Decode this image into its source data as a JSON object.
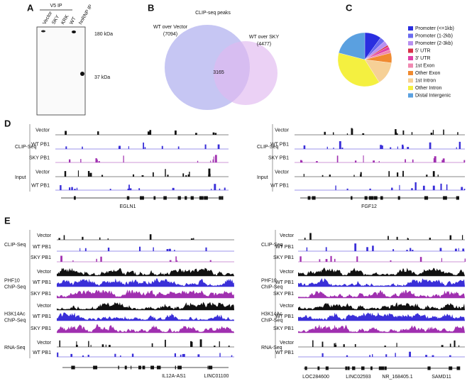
{
  "panel_a": {
    "label": "A",
    "header": "V5 IP",
    "lanes": [
      "Vector",
      "SKY",
      "KRK",
      "WT",
      "hnRNP IP"
    ],
    "markers": [
      "180 kDa",
      "37 kDa"
    ]
  },
  "panel_b": {
    "label": "B",
    "title": "CLIP-seq peaks",
    "sets": [
      {
        "name": "WT over Vector",
        "count": "(7094)"
      },
      {
        "name": "WT over SKY",
        "count": "(4477)"
      }
    ],
    "overlap": "3165"
  },
  "panel_c": {
    "label": "C",
    "chart_data": {
      "type": "pie",
      "categories": [
        "Promoter (<=1kb)",
        "Promoter (1-2kb)",
        "Promoter (2-3kb)",
        "5' UTR",
        "3' UTR",
        "1st Exon",
        "Other Exon",
        "1st Intron",
        "Other Intron",
        "Distal Intergenic"
      ],
      "values": [
        10,
        3,
        3,
        1,
        2,
        2,
        6,
        14,
        38,
        21
      ],
      "colors": [
        "#2a2ee0",
        "#6a6af0",
        "#b890f0",
        "#d83048",
        "#e040a8",
        "#f088b0",
        "#f08a30",
        "#f6d096",
        "#f4f040",
        "#5aa0e0"
      ]
    }
  },
  "panel_d": {
    "label": "D",
    "views": [
      {
        "tracks": [
          {
            "name": "Vector",
            "color": "#111111"
          },
          {
            "name": "WT PB1",
            "color": "#3a2fd8"
          },
          {
            "name": "SKY PB1",
            "color": "#a030b0"
          },
          {
            "name": "Vector",
            "color": "#111111"
          },
          {
            "name": "WT PB1",
            "color": "#3a2fd8"
          }
        ],
        "groups": [
          [
            "CLIP-Seq"
          ],
          [
            "Input"
          ]
        ],
        "genes": [
          "EGLN1"
        ]
      },
      {
        "tracks": [
          {
            "name": "Vector",
            "color": "#111111"
          },
          {
            "name": "WT PB1",
            "color": "#3a2fd8"
          },
          {
            "name": "SKY PB1",
            "color": "#a030b0"
          },
          {
            "name": "Vector",
            "color": "#111111"
          },
          {
            "name": "WT PB1",
            "color": "#3a2fd8"
          }
        ],
        "groups": [
          [
            "CLIP-Seq"
          ],
          [
            "Input"
          ]
        ],
        "genes": [
          "FGF12"
        ]
      }
    ]
  },
  "panel_e": {
    "label": "E",
    "views": [
      {
        "tracks": [
          {
            "name": "Vector",
            "color": "#111111"
          },
          {
            "name": "WT PB1",
            "color": "#3a2fd8"
          },
          {
            "name": "SKY PB1",
            "color": "#a030b0"
          },
          {
            "name": "Vector",
            "color": "#111111"
          },
          {
            "name": "WT PB1",
            "color": "#3a2fd8"
          },
          {
            "name": "SKY PB1",
            "color": "#a030b0"
          },
          {
            "name": "Vector",
            "color": "#111111"
          },
          {
            "name": "WT PB1",
            "color": "#3a2fd8"
          },
          {
            "name": "SKY PB1",
            "color": "#a030b0"
          },
          {
            "name": "Vector",
            "color": "#111111"
          },
          {
            "name": "WT PB1",
            "color": "#3a2fd8"
          }
        ],
        "groups": [
          [
            "CLIP-Seq"
          ],
          [
            "PHF10",
            "ChIP-Seq"
          ],
          [
            "H3K14Ac",
            "ChIP-Seq"
          ],
          [
            "RNA-Seq"
          ]
        ],
        "genes": [
          "IL12A-AS1",
          "LINC01100"
        ]
      },
      {
        "tracks": [
          {
            "name": "Vector",
            "color": "#111111"
          },
          {
            "name": "WT PB1",
            "color": "#3a2fd8"
          },
          {
            "name": "SKY PB1",
            "color": "#a030b0"
          },
          {
            "name": "Vector",
            "color": "#111111"
          },
          {
            "name": "WT PB1",
            "color": "#3a2fd8"
          },
          {
            "name": "SKY PB1",
            "color": "#a030b0"
          },
          {
            "name": "Vector",
            "color": "#111111"
          },
          {
            "name": "WT PB1",
            "color": "#3a2fd8"
          },
          {
            "name": "SKY PB1",
            "color": "#a030b0"
          },
          {
            "name": "Vector",
            "color": "#111111"
          },
          {
            "name": "WT PB1",
            "color": "#3a2fd8"
          }
        ],
        "groups": [
          [
            "CLIP-Seq"
          ],
          [
            "PHF10",
            "ChIP-Seq"
          ],
          [
            "H3K14Ac",
            "ChIP-Seq"
          ],
          [
            "RNA-Seq"
          ]
        ],
        "genes": [
          "LOC284600",
          "LINC02593",
          "NR_168405.1",
          "SAMD11"
        ]
      }
    ]
  }
}
